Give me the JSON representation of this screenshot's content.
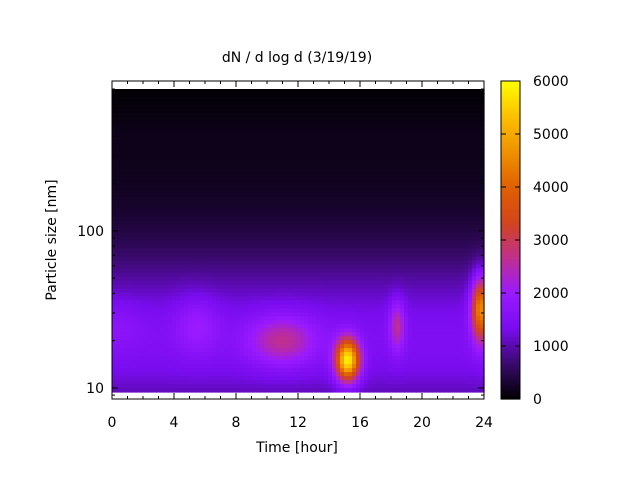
{
  "chart_data": {
    "type": "heatmap",
    "title": "dN / d log d (3/19/19)",
    "xlabel": "Time [hour]",
    "ylabel": "Particle size [nm]",
    "x_range": [
      0,
      24
    ],
    "x_ticks": [
      "0",
      "4",
      "8",
      "12",
      "16",
      "20",
      "24"
    ],
    "y_scale": "log",
    "y_range": [
      8.5,
      900
    ],
    "y_tick_values": [
      10,
      100
    ],
    "y_tick_labels": [
      "10",
      "100"
    ],
    "colorbar": {
      "range": [
        0,
        6000
      ],
      "ticks": [
        "0",
        "1000",
        "2000",
        "3000",
        "4000",
        "5000",
        "6000"
      ],
      "palette": [
        "#000000",
        "#3a0a6e",
        "#7a0cf0",
        "#9a1aff",
        "#c0308c",
        "#d2451c",
        "#e06000",
        "#f09200",
        "#fcc000",
        "#ffff00"
      ]
    },
    "features": [
      {
        "time_hour": 0.0,
        "size_nm": 25,
        "value": 1600
      },
      {
        "time_hour": 5.5,
        "size_nm": 25,
        "value": 1900
      },
      {
        "time_hour": 11.0,
        "size_nm": 20,
        "value": 2500
      },
      {
        "time_hour": 15.2,
        "size_nm": 15,
        "value": 5800
      },
      {
        "time_hour": 18.4,
        "size_nm": 25,
        "value": 2500
      },
      {
        "time_hour": 23.8,
        "size_nm": 32,
        "value": 4600
      }
    ]
  }
}
